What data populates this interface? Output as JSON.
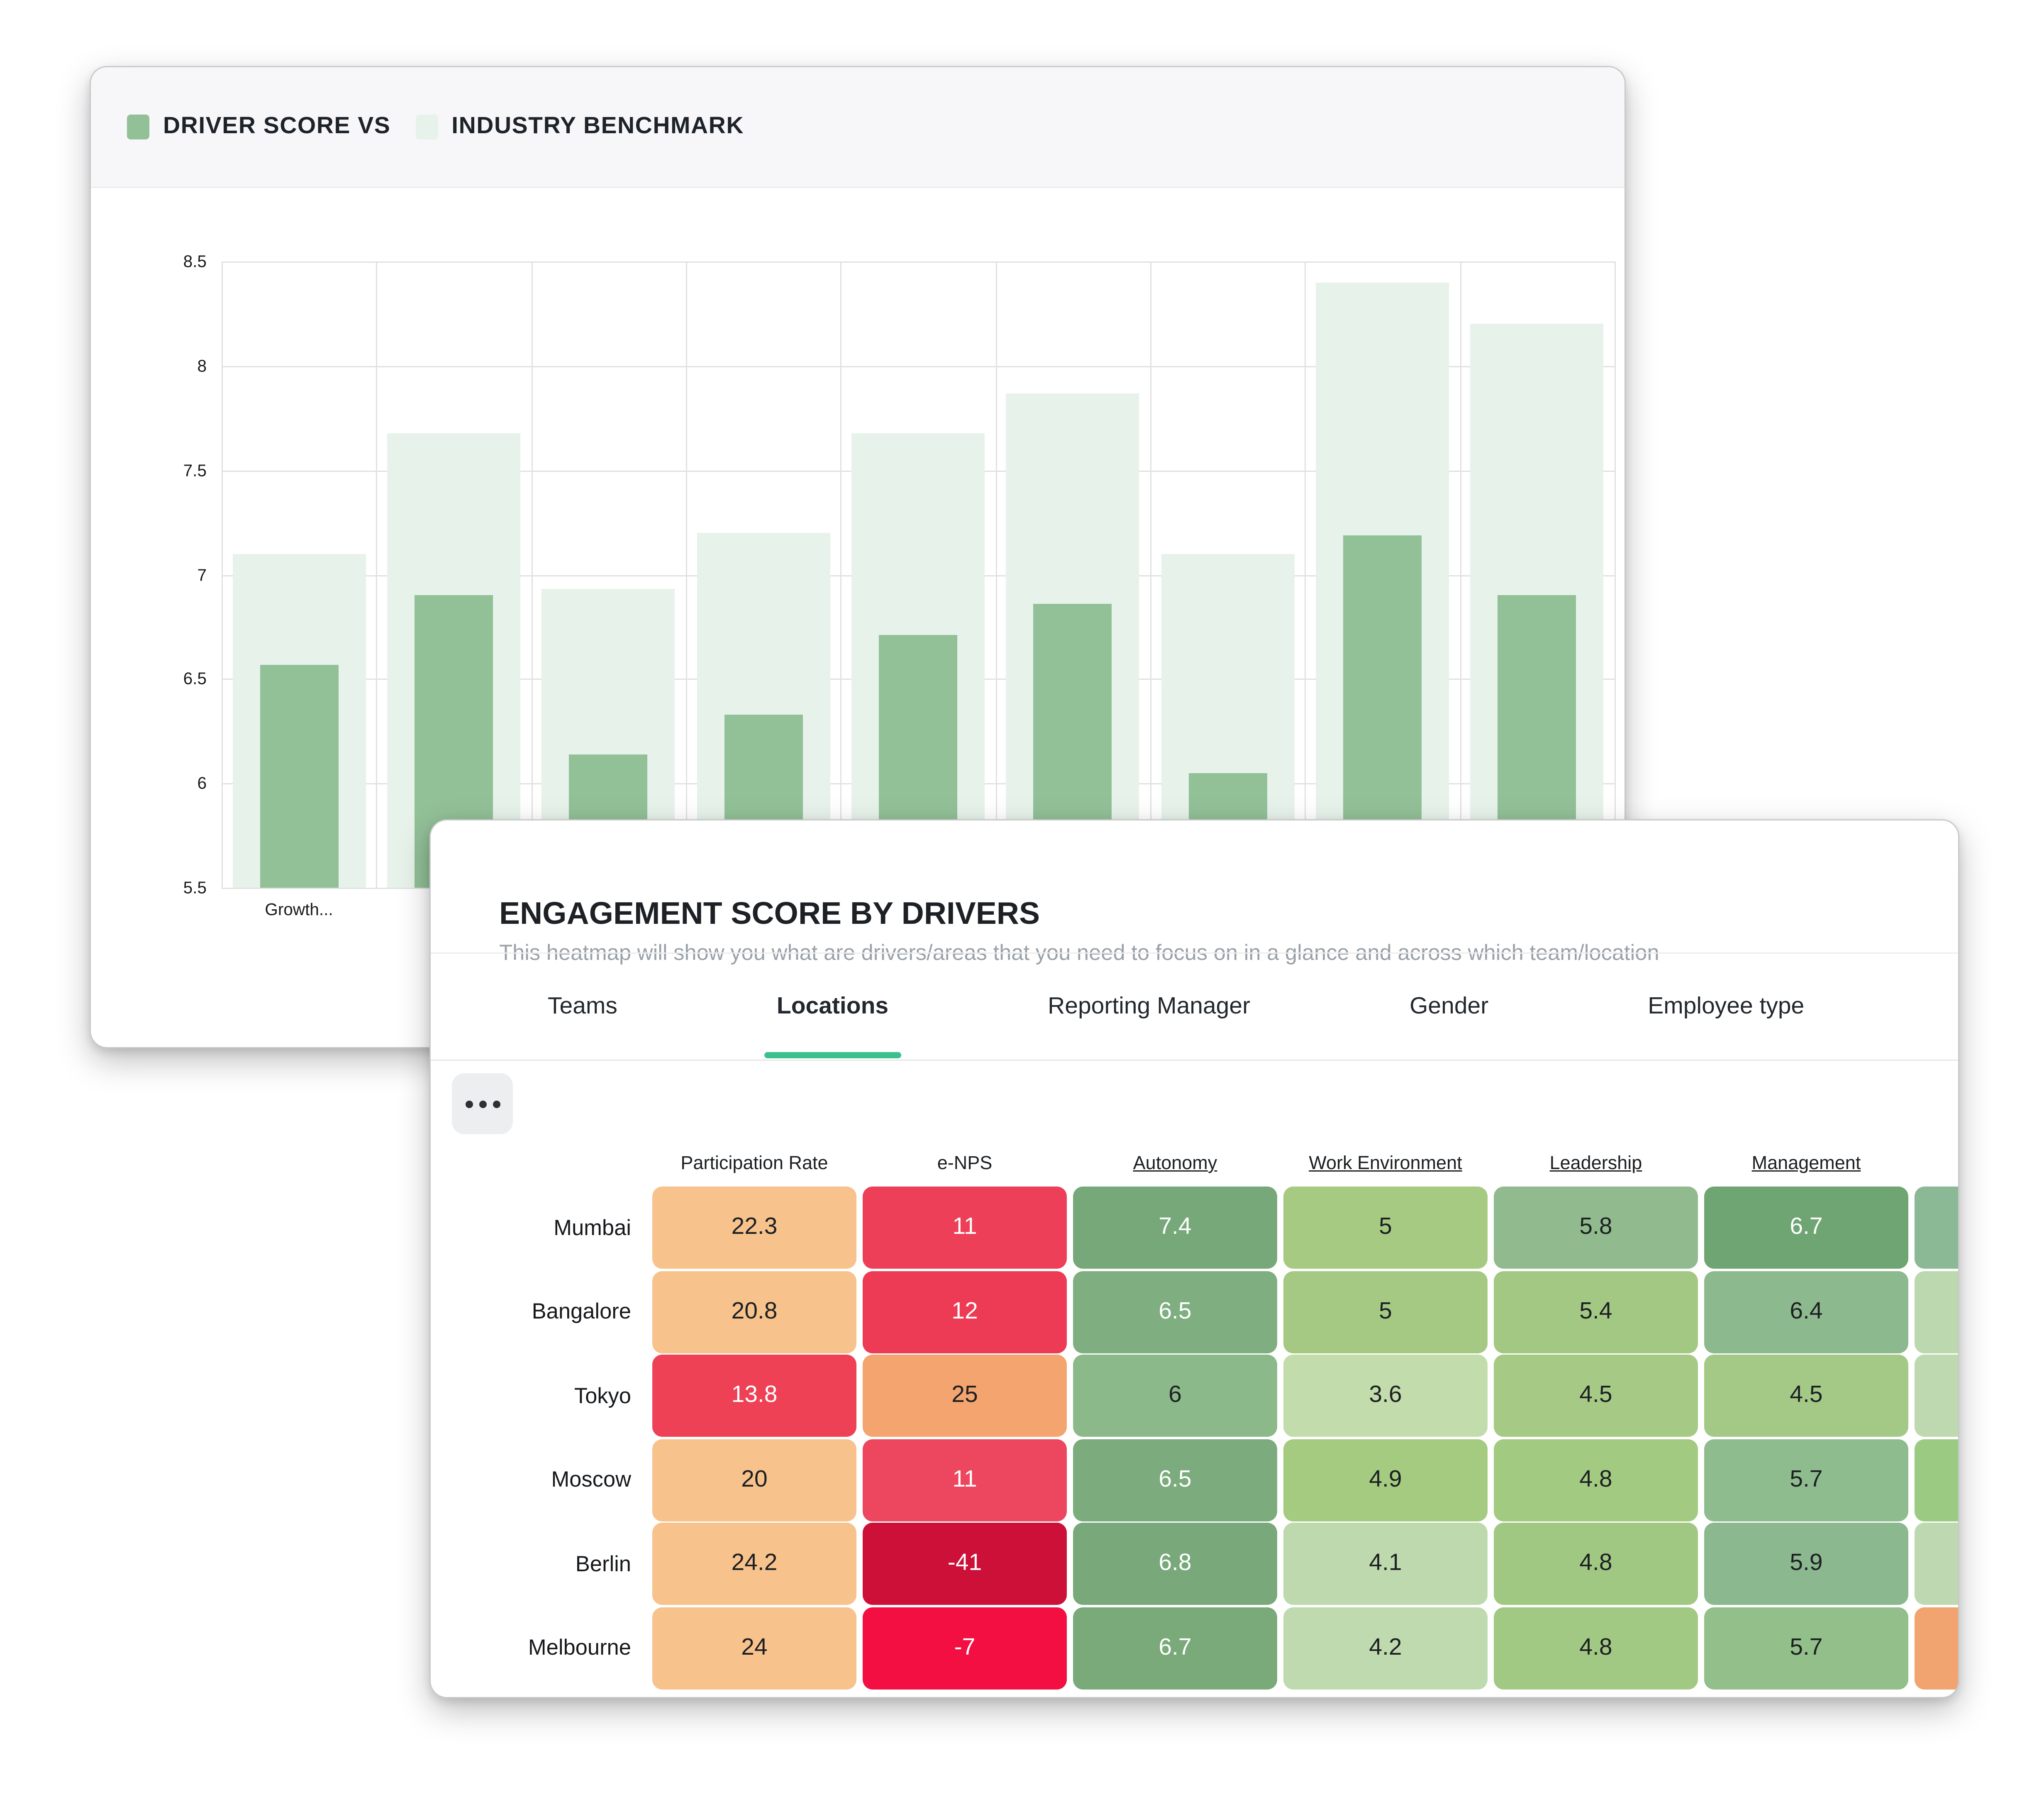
{
  "chart_data": {
    "type": "bar",
    "title": "DRIVER SCORE VS INDUSTRY BENCHMARK",
    "categories": [
      "Growth...",
      "",
      "",
      "",
      "",
      "",
      "",
      "",
      ""
    ],
    "series": [
      {
        "name": "DRIVER SCORE",
        "color": "#92c097",
        "values": [
          6.57,
          6.9,
          6.14,
          6.33,
          6.71,
          6.86,
          6.05,
          7.19,
          6.9
        ]
      },
      {
        "name": "INDUSTRY BENCHMARK",
        "color": "#e6f2ea",
        "values": [
          7.1,
          7.68,
          6.93,
          7.2,
          7.68,
          7.87,
          7.1,
          8.4,
          8.2
        ]
      }
    ],
    "xlabel": "",
    "ylabel": "",
    "ylim": [
      5.5,
      8.5
    ],
    "ytick_step": 0.5,
    "grid": true,
    "legend_position": "top",
    "legend": [
      {
        "label": "DRIVER SCORE VS",
        "color": "#92c097"
      },
      {
        "label": "INDUSTRY BENCHMARK",
        "color": "#e6f2ea"
      }
    ]
  },
  "heatmap": {
    "title": "ENGAGEMENT SCORE BY DRIVERS",
    "subtitle": "This heatmap will show you what are drivers/areas that you need to focus on in a glance and across which team/location",
    "accent_color": "#3cc18e",
    "more_button_icon": "ellipsis-icon",
    "tabs": [
      {
        "label": "Teams",
        "active": false
      },
      {
        "label": "Locations",
        "active": true
      },
      {
        "label": "Reporting Manager",
        "active": false
      },
      {
        "label": "Gender",
        "active": false
      },
      {
        "label": "Employee type",
        "active": false
      }
    ],
    "columns": [
      {
        "label": "Participation Rate",
        "underline": false
      },
      {
        "label": "e-NPS",
        "underline": false
      },
      {
        "label": "Autonomy",
        "underline": true
      },
      {
        "label": "Work Environment",
        "underline": true
      },
      {
        "label": "Leadership",
        "underline": true
      },
      {
        "label": "Management",
        "underline": true
      },
      {
        "label": "",
        "underline": false
      }
    ],
    "text_colors": {
      "dark": "#1d2023",
      "light": "#ffffff"
    },
    "rows": [
      {
        "label": "Mumbai",
        "cells": [
          {
            "v": "22.3",
            "bg": "#f7c28c",
            "fg": "dark"
          },
          {
            "v": "11",
            "bg": "#ed3f57",
            "fg": "light"
          },
          {
            "v": "7.4",
            "bg": "#77a87a",
            "fg": "light"
          },
          {
            "v": "5",
            "bg": "#a6ca81",
            "fg": "dark"
          },
          {
            "v": "5.8",
            "bg": "#91bb8e",
            "fg": "dark"
          },
          {
            "v": "6.7",
            "bg": "#6fa573",
            "fg": "light"
          },
          {
            "v": "",
            "bg": "#8bb996",
            "fg": "dark"
          }
        ]
      },
      {
        "label": "Bangalore",
        "cells": [
          {
            "v": "20.8",
            "bg": "#f7c28c",
            "fg": "dark"
          },
          {
            "v": "12",
            "bg": "#ed3b55",
            "fg": "light"
          },
          {
            "v": "6.5",
            "bg": "#7fae80",
            "fg": "light"
          },
          {
            "v": "5",
            "bg": "#a5c983",
            "fg": "dark"
          },
          {
            "v": "5.4",
            "bg": "#a3c883",
            "fg": "dark"
          },
          {
            "v": "6.4",
            "bg": "#8db98e",
            "fg": "dark"
          },
          {
            "v": "",
            "bg": "#bcd8ae",
            "fg": "dark"
          }
        ]
      },
      {
        "label": "Tokyo",
        "cells": [
          {
            "v": "13.8",
            "bg": "#ee4156",
            "fg": "light"
          },
          {
            "v": "25",
            "bg": "#f3a46f",
            "fg": "dark"
          },
          {
            "v": "6",
            "bg": "#8cb98a",
            "fg": "dark"
          },
          {
            "v": "3.6",
            "bg": "#c2dcab",
            "fg": "dark"
          },
          {
            "v": "4.5",
            "bg": "#a6ca85",
            "fg": "dark"
          },
          {
            "v": "4.5",
            "bg": "#a4c986",
            "fg": "dark"
          },
          {
            "v": "",
            "bg": "#bed8b0",
            "fg": "dark"
          }
        ]
      },
      {
        "label": "Moscow",
        "cells": [
          {
            "v": "20",
            "bg": "#f7c28c",
            "fg": "dark"
          },
          {
            "v": "11",
            "bg": "#ed4760",
            "fg": "light"
          },
          {
            "v": "6.5",
            "bg": "#7cab7d",
            "fg": "light"
          },
          {
            "v": "4.9",
            "bg": "#a5cb80",
            "fg": "dark"
          },
          {
            "v": "4.8",
            "bg": "#a3ca81",
            "fg": "dark"
          },
          {
            "v": "5.7",
            "bg": "#8fbc8e",
            "fg": "dark"
          },
          {
            "v": "",
            "bg": "#9bcb82",
            "fg": "dark"
          }
        ]
      },
      {
        "label": "Berlin",
        "cells": [
          {
            "v": "24.2",
            "bg": "#f7c28c",
            "fg": "dark"
          },
          {
            "v": "-41",
            "bg": "#cc1038",
            "fg": "light"
          },
          {
            "v": "6.8",
            "bg": "#79a97b",
            "fg": "light"
          },
          {
            "v": "4.1",
            "bg": "#bed9ae",
            "fg": "dark"
          },
          {
            "v": "4.8",
            "bg": "#a0c883",
            "fg": "dark"
          },
          {
            "v": "5.9",
            "bg": "#8bb88f",
            "fg": "dark"
          },
          {
            "v": "",
            "bg": "#bed9b1",
            "fg": "dark"
          }
        ]
      },
      {
        "label": "Melbourne",
        "cells": [
          {
            "v": "24",
            "bg": "#f7c28c",
            "fg": "dark"
          },
          {
            "v": "-7",
            "bg": "#f40f43",
            "fg": "light"
          },
          {
            "v": "6.7",
            "bg": "#7aa97a",
            "fg": "light"
          },
          {
            "v": "4.2",
            "bg": "#bfdaae",
            "fg": "dark"
          },
          {
            "v": "4.8",
            "bg": "#a2c983",
            "fg": "dark"
          },
          {
            "v": "5.7",
            "bg": "#92bf8a",
            "fg": "dark"
          },
          {
            "v": "",
            "bg": "#f2a470",
            "fg": "dark"
          }
        ]
      }
    ]
  }
}
